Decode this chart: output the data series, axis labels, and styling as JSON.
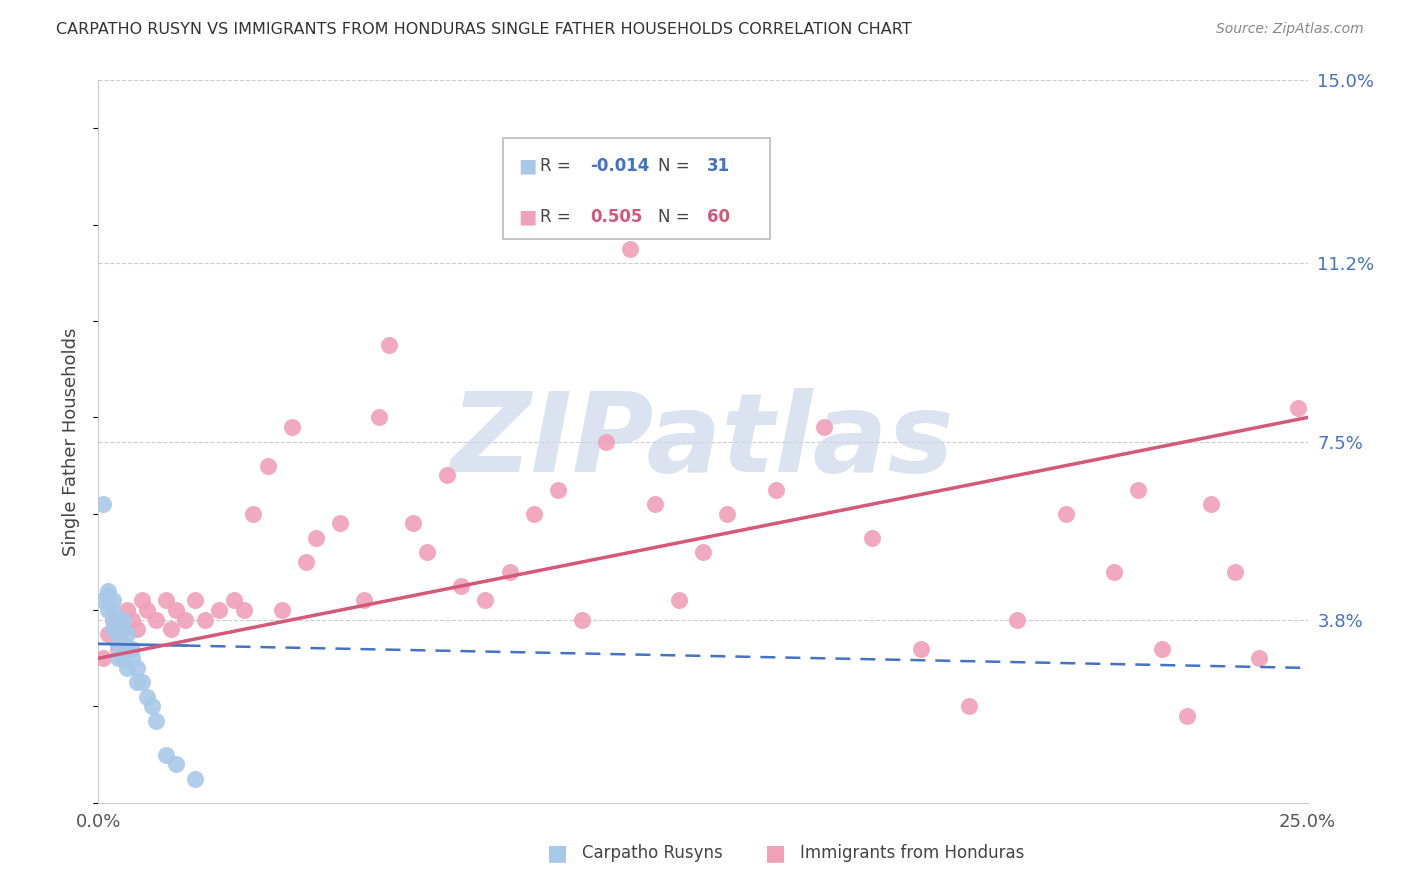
{
  "title": "CARPATHO RUSYN VS IMMIGRANTS FROM HONDURAS SINGLE FATHER HOUSEHOLDS CORRELATION CHART",
  "source": "Source: ZipAtlas.com",
  "ylabel": "Single Father Households",
  "xlim": [
    0.0,
    0.25
  ],
  "ylim": [
    0.0,
    0.15
  ],
  "ytick_positions": [
    0.0,
    0.038,
    0.075,
    0.112,
    0.15
  ],
  "ytick_labels_right": [
    "",
    "3.8%",
    "7.5%",
    "11.2%",
    "15.0%"
  ],
  "blue_color": "#a8c8e8",
  "pink_color": "#f0a0b8",
  "blue_line_color": "#4472c4",
  "pink_line_color": "#d45878",
  "watermark": "ZIPatlas",
  "watermark_color": "#ccd8ea",
  "legend_label_blue": "Carpatho Rusyns",
  "legend_label_pink": "Immigrants from Honduras",
  "blue_R_str": "-0.014",
  "blue_N_str": "31",
  "pink_R_str": "0.505",
  "pink_N_str": "60",
  "blue_x": [
    0.001,
    0.001,
    0.002,
    0.002,
    0.002,
    0.003,
    0.003,
    0.003,
    0.003,
    0.004,
    0.004,
    0.004,
    0.004,
    0.005,
    0.005,
    0.005,
    0.005,
    0.006,
    0.006,
    0.006,
    0.007,
    0.007,
    0.008,
    0.008,
    0.009,
    0.01,
    0.011,
    0.012,
    0.014,
    0.016,
    0.02
  ],
  "blue_y": [
    0.062,
    0.042,
    0.043,
    0.04,
    0.044,
    0.038,
    0.042,
    0.04,
    0.036,
    0.035,
    0.037,
    0.033,
    0.03,
    0.038,
    0.036,
    0.033,
    0.03,
    0.035,
    0.032,
    0.028,
    0.032,
    0.03,
    0.028,
    0.025,
    0.025,
    0.022,
    0.02,
    0.017,
    0.01,
    0.008,
    0.005
  ],
  "pink_x": [
    0.001,
    0.002,
    0.003,
    0.004,
    0.005,
    0.006,
    0.007,
    0.008,
    0.009,
    0.01,
    0.012,
    0.014,
    0.015,
    0.016,
    0.018,
    0.02,
    0.022,
    0.025,
    0.028,
    0.03,
    0.032,
    0.035,
    0.038,
    0.04,
    0.043,
    0.045,
    0.05,
    0.055,
    0.058,
    0.06,
    0.065,
    0.068,
    0.072,
    0.075,
    0.08,
    0.085,
    0.09,
    0.095,
    0.1,
    0.105,
    0.11,
    0.115,
    0.12,
    0.125,
    0.13,
    0.14,
    0.15,
    0.16,
    0.17,
    0.18,
    0.19,
    0.2,
    0.21,
    0.215,
    0.22,
    0.225,
    0.23,
    0.235,
    0.24,
    0.248
  ],
  "pink_y": [
    0.03,
    0.035,
    0.038,
    0.032,
    0.036,
    0.04,
    0.038,
    0.036,
    0.042,
    0.04,
    0.038,
    0.042,
    0.036,
    0.04,
    0.038,
    0.042,
    0.038,
    0.04,
    0.042,
    0.04,
    0.06,
    0.07,
    0.04,
    0.078,
    0.05,
    0.055,
    0.058,
    0.042,
    0.08,
    0.095,
    0.058,
    0.052,
    0.068,
    0.045,
    0.042,
    0.048,
    0.06,
    0.065,
    0.038,
    0.075,
    0.115,
    0.062,
    0.042,
    0.052,
    0.06,
    0.065,
    0.078,
    0.055,
    0.032,
    0.02,
    0.038,
    0.06,
    0.048,
    0.065,
    0.032,
    0.018,
    0.062,
    0.048,
    0.03,
    0.082
  ],
  "blue_line_x0": 0.0,
  "blue_line_x1": 0.25,
  "blue_line_y0": 0.033,
  "blue_line_y1": 0.028,
  "pink_line_x0": 0.0,
  "pink_line_x1": 0.25,
  "pink_line_y0": 0.03,
  "pink_line_y1": 0.08
}
